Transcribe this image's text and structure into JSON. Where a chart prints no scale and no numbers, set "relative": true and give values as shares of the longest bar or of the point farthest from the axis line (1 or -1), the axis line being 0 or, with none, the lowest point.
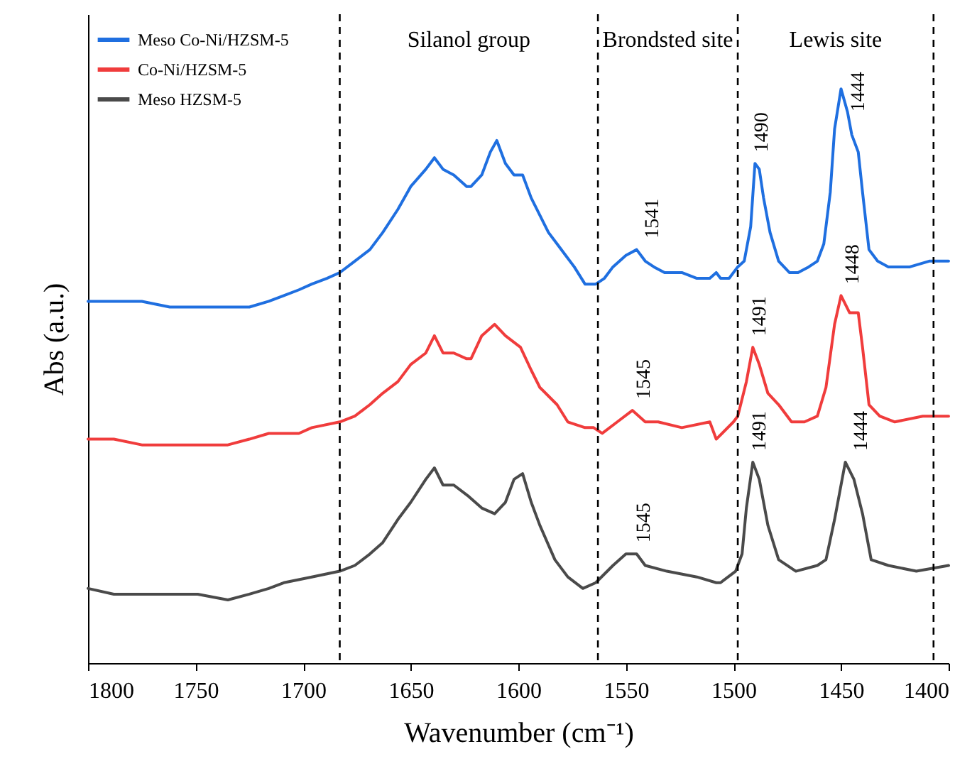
{
  "chart_data": {
    "type": "line",
    "relative": true,
    "xlabel": "Wavenumber (cm⁻¹)",
    "ylabel": "Abs (a.u.)",
    "xlim": [
      1800,
      1400
    ],
    "xticks": [
      1800,
      1750,
      1700,
      1650,
      1600,
      1550,
      1500,
      1450,
      1400
    ],
    "grid": false,
    "legend": "top left",
    "series": [
      {
        "name": "Meso Co-Ni/HZSM-5",
        "color": "#1f6fe0",
        "x": [
          1800,
          1788,
          1775,
          1762,
          1749,
          1735,
          1725,
          1716,
          1709,
          1702,
          1696,
          1689,
          1683,
          1676,
          1669,
          1663,
          1656,
          1650,
          1643,
          1639,
          1635,
          1630,
          1624,
          1622,
          1617,
          1613,
          1610,
          1606,
          1602,
          1598,
          1594,
          1590,
          1586,
          1582,
          1578,
          1574,
          1569,
          1564,
          1560,
          1556,
          1550,
          1545,
          1541,
          1537,
          1532,
          1524,
          1517,
          1511,
          1508,
          1506,
          1502,
          1498,
          1495,
          1492,
          1490,
          1488,
          1486,
          1483,
          1479,
          1474,
          1470,
          1465,
          1461,
          1458,
          1455,
          1453,
          1450,
          1447,
          1445,
          1442,
          1440,
          1437,
          1433,
          1428,
          1418,
          1409,
          1400
        ],
        "values": [
          0.63,
          0.63,
          0.63,
          0.62,
          0.62,
          0.62,
          0.62,
          0.63,
          0.64,
          0.65,
          0.66,
          0.67,
          0.68,
          0.7,
          0.72,
          0.75,
          0.79,
          0.83,
          0.86,
          0.88,
          0.86,
          0.85,
          0.83,
          0.83,
          0.85,
          0.89,
          0.91,
          0.87,
          0.85,
          0.85,
          0.81,
          0.78,
          0.75,
          0.73,
          0.71,
          0.69,
          0.66,
          0.66,
          0.67,
          0.69,
          0.71,
          0.72,
          0.7,
          0.69,
          0.68,
          0.68,
          0.67,
          0.67,
          0.68,
          0.67,
          0.67,
          0.69,
          0.7,
          0.76,
          0.87,
          0.86,
          0.81,
          0.75,
          0.7,
          0.68,
          0.68,
          0.69,
          0.7,
          0.73,
          0.82,
          0.93,
          1.0,
          0.96,
          0.92,
          0.89,
          0.82,
          0.72,
          0.7,
          0.69,
          0.69,
          0.7,
          0.7
        ]
      },
      {
        "name": "Co-Ni/HZSM-5",
        "color": "#f03c3c",
        "x": [
          1800,
          1788,
          1775,
          1762,
          1749,
          1735,
          1725,
          1716,
          1709,
          1702,
          1696,
          1683,
          1676,
          1669,
          1663,
          1656,
          1650,
          1643,
          1639,
          1635,
          1630,
          1624,
          1622,
          1617,
          1611,
          1606,
          1599,
          1594,
          1590,
          1582,
          1577,
          1569,
          1565,
          1561,
          1554,
          1547,
          1541,
          1535,
          1524,
          1511,
          1508,
          1500,
          1498,
          1494,
          1491,
          1488,
          1484,
          1479,
          1473,
          1467,
          1461,
          1457,
          1453,
          1450,
          1446,
          1442,
          1440,
          1437,
          1432,
          1425,
          1412,
          1400
        ],
        "values": [
          0.39,
          0.39,
          0.38,
          0.38,
          0.38,
          0.38,
          0.39,
          0.4,
          0.4,
          0.4,
          0.41,
          0.42,
          0.43,
          0.45,
          0.47,
          0.49,
          0.52,
          0.54,
          0.57,
          0.54,
          0.54,
          0.53,
          0.53,
          0.57,
          0.59,
          0.57,
          0.55,
          0.51,
          0.48,
          0.45,
          0.42,
          0.41,
          0.41,
          0.4,
          0.42,
          0.44,
          0.42,
          0.42,
          0.41,
          0.42,
          0.39,
          0.42,
          0.43,
          0.49,
          0.55,
          0.52,
          0.47,
          0.45,
          0.42,
          0.42,
          0.43,
          0.48,
          0.59,
          0.64,
          0.61,
          0.61,
          0.55,
          0.45,
          0.43,
          0.42,
          0.43,
          0.43
        ]
      },
      {
        "name": "Meso HZSM-5",
        "color": "#4a4a4a",
        "x": [
          1800,
          1788,
          1775,
          1762,
          1749,
          1735,
          1725,
          1716,
          1709,
          1696,
          1683,
          1676,
          1669,
          1663,
          1656,
          1650,
          1643,
          1639,
          1635,
          1630,
          1623,
          1617,
          1611,
          1606,
          1602,
          1598,
          1594,
          1590,
          1583,
          1577,
          1570,
          1564,
          1556,
          1550,
          1545,
          1541,
          1531,
          1517,
          1508,
          1506,
          1499,
          1496,
          1494,
          1491,
          1488,
          1484,
          1479,
          1471,
          1461,
          1457,
          1453,
          1448,
          1444,
          1440,
          1436,
          1428,
          1415,
          1400
        ],
        "values": [
          0.13,
          0.12,
          0.12,
          0.12,
          0.12,
          0.11,
          0.12,
          0.13,
          0.14,
          0.15,
          0.16,
          0.17,
          0.19,
          0.21,
          0.25,
          0.28,
          0.32,
          0.34,
          0.31,
          0.31,
          0.29,
          0.27,
          0.26,
          0.28,
          0.32,
          0.33,
          0.28,
          0.24,
          0.18,
          0.15,
          0.13,
          0.14,
          0.17,
          0.19,
          0.19,
          0.17,
          0.16,
          0.15,
          0.14,
          0.14,
          0.16,
          0.19,
          0.27,
          0.35,
          0.32,
          0.24,
          0.18,
          0.16,
          0.17,
          0.18,
          0.25,
          0.35,
          0.32,
          0.26,
          0.18,
          0.17,
          0.16,
          0.17
        ]
      }
    ],
    "ref_lines": [
      {
        "axis": "x",
        "value": 1683,
        "color": "#000000",
        "line_style": "dashed"
      },
      {
        "axis": "x",
        "value": 1563,
        "color": "#000000",
        "line_style": "dashed"
      },
      {
        "axis": "x",
        "value": 1498,
        "color": "#000000",
        "line_style": "dashed"
      },
      {
        "axis": "x",
        "value": 1407,
        "color": "#000000",
        "line_style": "dashed"
      }
    ],
    "annotations": [
      "Silanol group",
      "Brondsted site",
      "Lewis site",
      {
        "text": "1541",
        "x": 1541,
        "y": 0.72
      },
      {
        "text": "1490",
        "x": 1490,
        "y": 0.87
      },
      {
        "text": "1444",
        "x": 1450,
        "y": 1.0
      },
      {
        "text": "1545",
        "x": 1545,
        "y": 0.44
      },
      {
        "text": "1491",
        "x": 1491,
        "y": 0.55
      },
      {
        "text": "1448",
        "x": 1448,
        "y": 0.64
      },
      {
        "text": "1545",
        "x": 1545,
        "y": 0.19
      },
      {
        "text": "1491",
        "x": 1491,
        "y": 0.35
      },
      {
        "text": "1444",
        "x": 1444,
        "y": 0.35
      }
    ]
  }
}
